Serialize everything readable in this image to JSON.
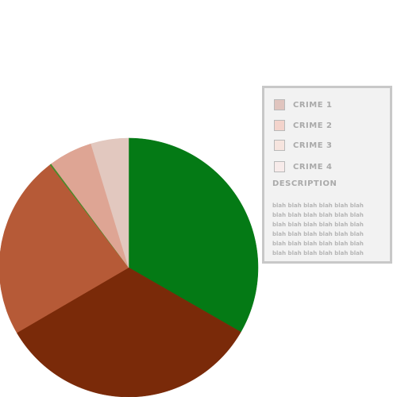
{
  "chart_data": {
    "type": "pie",
    "title": "",
    "slices": [
      {
        "name": "",
        "value": 33.3,
        "color": "#047a15"
      },
      {
        "name": "",
        "value": 33.3,
        "color": "#7a2a09"
      },
      {
        "name": "",
        "value": 23.0,
        "color": "#b65a37"
      },
      {
        "name": "",
        "value": 0.2,
        "color": "#4a8a2a"
      },
      {
        "name": "",
        "value": 5.5,
        "color": "#dea594"
      },
      {
        "name": "",
        "value": 4.7,
        "color": "#e2c8bf"
      }
    ],
    "start_angle": "12 o'clock",
    "direction": "clockwise"
  },
  "legend": {
    "items": [
      {
        "label": "CRIME 1",
        "color": "#e0c4be"
      },
      {
        "label": "CRIME 2",
        "color": "#f3d3cb"
      },
      {
        "label": "CRIME 3",
        "color": "#f6e4de"
      },
      {
        "label": "CRIME 4",
        "color": "#f7ebea"
      }
    ],
    "description_title": "DESCRIPTION",
    "description_text": "blah blah blah blah blah blah blah blah blah blah blah blah blah blah blah blah blah blah blah blah blah blah blah blah blah blah blah blah blah blah blah blah blah blah blah blah"
  }
}
